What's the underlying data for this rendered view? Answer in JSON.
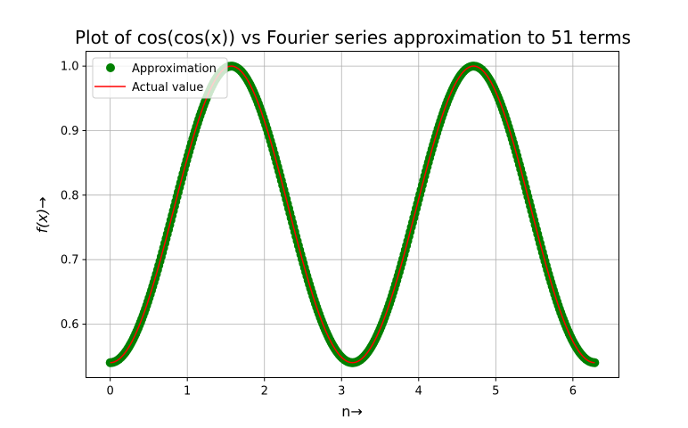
{
  "chart_data": {
    "type": "scatter",
    "title": "Plot of cos(cos(x)) vs Fourier series approximation to 51 terms",
    "xlabel": "n→",
    "ylabel": "f(x)→",
    "xlim": [
      -0.314,
      6.597
    ],
    "ylim": [
      0.5171,
      1.023
    ],
    "xticks": [
      0,
      1,
      2,
      3,
      4,
      5,
      6
    ],
    "yticks": [
      0.6,
      0.7,
      0.8,
      0.9,
      1.0
    ],
    "xtick_labels": [
      "0",
      "1",
      "2",
      "3",
      "4",
      "5",
      "6"
    ],
    "ytick_labels": [
      "0.6",
      "0.7",
      "0.8",
      "0.9",
      "1.0"
    ],
    "grid": true,
    "legend_position": "top-left",
    "function": "cos(cos(x))",
    "x_range": [
      0,
      6.2832
    ],
    "num_points": 400,
    "series": [
      {
        "name": "Approximation",
        "type": "scatter",
        "color": "#008000"
      },
      {
        "name": "Actual value",
        "type": "line",
        "color": "#ff0000"
      }
    ]
  }
}
